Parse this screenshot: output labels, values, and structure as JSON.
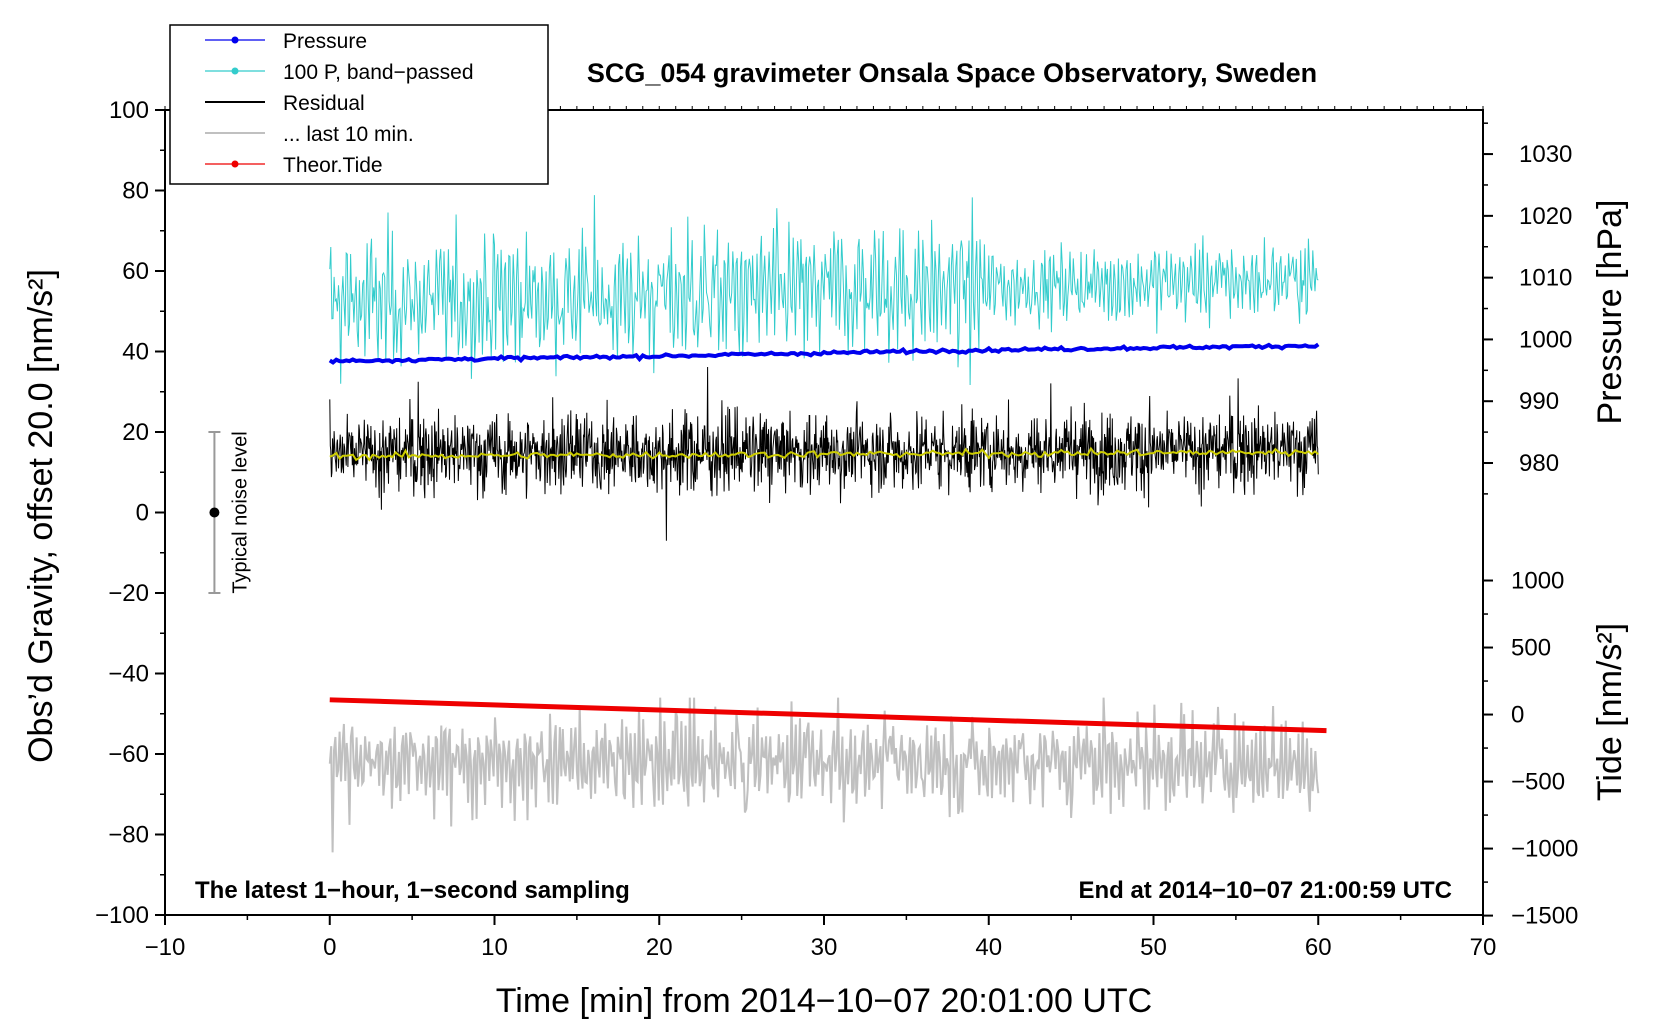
{
  "chart_data": {
    "type": "line",
    "title": "SCG_054 gravimeter Onsala Space Observatory, Sweden",
    "xlabel": "Time [min] from 2014−10−07 20:01:00 UTC",
    "ylabel": "Obs’d Gravity, offset 20.0 [nm/s²]",
    "ylabel_right_top": "Pressure [hPa]",
    "ylabel_right_bottom": "Tide [nm/s²]",
    "xlim": [
      -10,
      70
    ],
    "ylim": [
      -100,
      100
    ],
    "x_ticks": [
      "−10",
      "0",
      "10",
      "20",
      "30",
      "40",
      "50",
      "60",
      "70"
    ],
    "x_tick_values": [
      -10,
      0,
      10,
      20,
      30,
      40,
      50,
      60,
      70
    ],
    "y_ticks": [
      "100",
      "80",
      "60",
      "40",
      "20",
      "0",
      "−20",
      "−40",
      "−60",
      "−80",
      "−100"
    ],
    "y_tick_values": [
      100,
      80,
      60,
      40,
      20,
      0,
      -20,
      -40,
      -60,
      -80,
      -100
    ],
    "pressure_axis": {
      "ticks": [
        "1030",
        "1020",
        "1010",
        "1000",
        "990",
        "980"
      ],
      "tick_values": [
        1030,
        1020,
        1010,
        1000,
        990,
        980
      ],
      "gravity_at_1000": 43,
      "gravity_per_hpa": 1.535
    },
    "tide_axis": {
      "ticks": [
        "1000",
        "500",
        "0",
        "−500",
        "−1000",
        "−1500"
      ],
      "tick_values": [
        1000,
        500,
        0,
        -500,
        -1000,
        -1500
      ],
      "gravity_at_0": -50.2,
      "gravity_per_unit": 0.0333
    },
    "series": [
      {
        "name": "Pressure",
        "color": "#0000ee",
        "style": "line-dot",
        "approx_hpa": [
          996.5,
          997.3,
          998.3,
          999.0
        ],
        "x": [
          0,
          20,
          40,
          60
        ]
      },
      {
        "name": "100 P, band−passed",
        "color": "#33cccc",
        "style": "line-dot",
        "approx_mean": 55,
        "approx_range": [
          28,
          80
        ]
      },
      {
        "name": "Residual",
        "color": "#000000",
        "style": "line",
        "approx_mean": 15,
        "approx_range": [
          -7,
          40
        ]
      },
      {
        "name": "... last 10 min.",
        "color": "#c0c0c0",
        "style": "line",
        "approx_mean": -62,
        "approx_range": [
          -85,
          -46
        ]
      },
      {
        "name": "Theor.Tide",
        "color": "#ee0000",
        "style": "line-dot",
        "x": [
          0,
          60.5
        ],
        "values": [
          110,
          -120
        ]
      }
    ],
    "smoothed_residual": {
      "color": "#cccc00",
      "values_start_end": [
        14,
        15
      ]
    },
    "noise_bar": {
      "label": "Typical noise level",
      "x": -7,
      "center": 0,
      "half_range": 20
    },
    "annotations": {
      "left": "The latest 1−hour, 1−second sampling",
      "right": "End at 2014−10−07 21:00:59 UTC"
    },
    "legend_position": "top-left"
  }
}
